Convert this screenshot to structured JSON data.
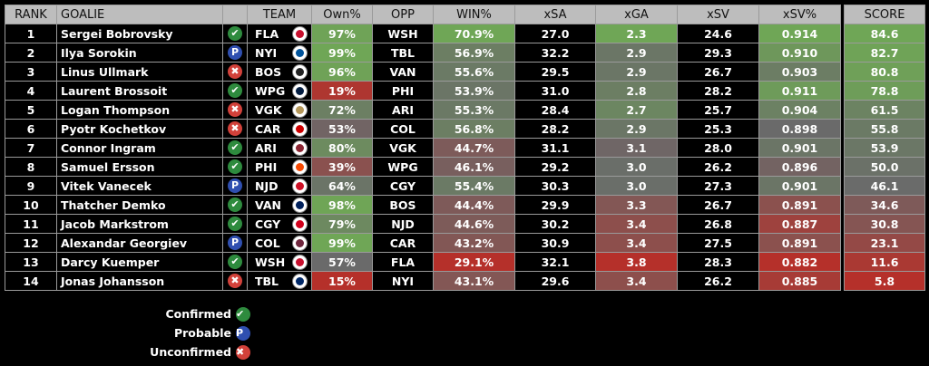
{
  "colors": {
    "green": "#6fa656",
    "gray": "#6a6a6a",
    "red": "#b5302a",
    "confirmed": "#2e8b3e",
    "probable": "#2f4fb0",
    "unconfirmed": "#d2413a"
  },
  "headers": {
    "rank": "RANK",
    "goalie": "GOALIE",
    "team": "TEAM",
    "own": "Own%",
    "opp": "OPP",
    "win": "WIN%",
    "xsa": "xSA",
    "xga": "xGA",
    "xsv": "xSV",
    "xsvp": "xSV%",
    "score": "SCORE"
  },
  "status_glyphs": {
    "confirmed": "✔",
    "probable": "P",
    "unconfirmed": "✖"
  },
  "team_colors": {
    "FLA": "#c8102e",
    "NYI": "#00539b",
    "BOS": "#222",
    "WPG": "#041e42",
    "VGK": "#b4975a",
    "CAR": "#cc0000",
    "ARI": "#8c2633",
    "PHI": "#f74902",
    "NJD": "#ce1126",
    "VAN": "#00205b",
    "CGY": "#d2001c",
    "COL": "#6f263d",
    "WSH": "#c8102e",
    "TBL": "#002868"
  },
  "rows": [
    {
      "rank": "1",
      "goalie": "Sergei Bobrovsky",
      "status": "confirmed",
      "team": "FLA",
      "own": "97%",
      "opp": "WSH",
      "win": "70.9%",
      "xsa": "27.0",
      "xga": "2.3",
      "xsv": "24.6",
      "xsvp": "0.914",
      "score": "84.6"
    },
    {
      "rank": "2",
      "goalie": "Ilya Sorokin",
      "status": "probable",
      "team": "NYI",
      "own": "99%",
      "opp": "TBL",
      "win": "56.9%",
      "xsa": "32.2",
      "xga": "2.9",
      "xsv": "29.3",
      "xsvp": "0.910",
      "score": "82.7"
    },
    {
      "rank": "3",
      "goalie": "Linus Ullmark",
      "status": "unconfirmed",
      "team": "BOS",
      "own": "96%",
      "opp": "VAN",
      "win": "55.6%",
      "xsa": "29.5",
      "xga": "2.9",
      "xsv": "26.7",
      "xsvp": "0.903",
      "score": "80.8"
    },
    {
      "rank": "4",
      "goalie": "Laurent Brossoit",
      "status": "confirmed",
      "team": "WPG",
      "own": "19%",
      "opp": "PHI",
      "win": "53.9%",
      "xsa": "31.0",
      "xga": "2.8",
      "xsv": "28.2",
      "xsvp": "0.911",
      "score": "78.8"
    },
    {
      "rank": "5",
      "goalie": "Logan Thompson",
      "status": "unconfirmed",
      "team": "VGK",
      "own": "72%",
      "opp": "ARI",
      "win": "55.3%",
      "xsa": "28.4",
      "xga": "2.7",
      "xsv": "25.7",
      "xsvp": "0.904",
      "score": "61.5"
    },
    {
      "rank": "6",
      "goalie": "Pyotr Kochetkov",
      "status": "unconfirmed",
      "team": "CAR",
      "own": "53%",
      "opp": "COL",
      "win": "56.8%",
      "xsa": "28.2",
      "xga": "2.9",
      "xsv": "25.3",
      "xsvp": "0.898",
      "score": "55.8"
    },
    {
      "rank": "7",
      "goalie": "Connor Ingram",
      "status": "confirmed",
      "team": "ARI",
      "own": "80%",
      "opp": "VGK",
      "win": "44.7%",
      "xsa": "31.1",
      "xga": "3.1",
      "xsv": "28.0",
      "xsvp": "0.901",
      "score": "53.9"
    },
    {
      "rank": "8",
      "goalie": "Samuel Ersson",
      "status": "confirmed",
      "team": "PHI",
      "own": "39%",
      "opp": "WPG",
      "win": "46.1%",
      "xsa": "29.2",
      "xga": "3.0",
      "xsv": "26.2",
      "xsvp": "0.896",
      "score": "50.0"
    },
    {
      "rank": "9",
      "goalie": "Vitek Vanecek",
      "status": "probable",
      "team": "NJD",
      "own": "64%",
      "opp": "CGY",
      "win": "55.4%",
      "xsa": "30.3",
      "xga": "3.0",
      "xsv": "27.3",
      "xsvp": "0.901",
      "score": "46.1"
    },
    {
      "rank": "10",
      "goalie": "Thatcher Demko",
      "status": "confirmed",
      "team": "VAN",
      "own": "98%",
      "opp": "BOS",
      "win": "44.4%",
      "xsa": "29.9",
      "xga": "3.3",
      "xsv": "26.7",
      "xsvp": "0.891",
      "score": "34.6"
    },
    {
      "rank": "11",
      "goalie": "Jacob Markstrom",
      "status": "confirmed",
      "team": "CGY",
      "own": "79%",
      "opp": "NJD",
      "win": "44.6%",
      "xsa": "30.2",
      "xga": "3.4",
      "xsv": "26.8",
      "xsvp": "0.887",
      "score": "30.8"
    },
    {
      "rank": "12",
      "goalie": "Alexandar Georgiev",
      "status": "probable",
      "team": "COL",
      "own": "99%",
      "opp": "CAR",
      "win": "43.2%",
      "xsa": "30.9",
      "xga": "3.4",
      "xsv": "27.5",
      "xsvp": "0.891",
      "score": "23.1"
    },
    {
      "rank": "13",
      "goalie": "Darcy Kuemper",
      "status": "confirmed",
      "team": "WSH",
      "own": "57%",
      "opp": "FLA",
      "win": "29.1%",
      "xsa": "32.1",
      "xga": "3.8",
      "xsv": "28.3",
      "xsvp": "0.882",
      "score": "11.6"
    },
    {
      "rank": "14",
      "goalie": "Jonas Johansson",
      "status": "unconfirmed",
      "team": "TBL",
      "own": "15%",
      "opp": "NYI",
      "win": "43.1%",
      "xsa": "29.6",
      "xga": "3.4",
      "xsv": "26.2",
      "xsvp": "0.885",
      "score": "5.8"
    }
  ],
  "legend": [
    {
      "label": "Confirmed",
      "status": "confirmed"
    },
    {
      "label": "Probable",
      "status": "probable"
    },
    {
      "label": "Unconfirmed",
      "status": "unconfirmed"
    }
  ]
}
